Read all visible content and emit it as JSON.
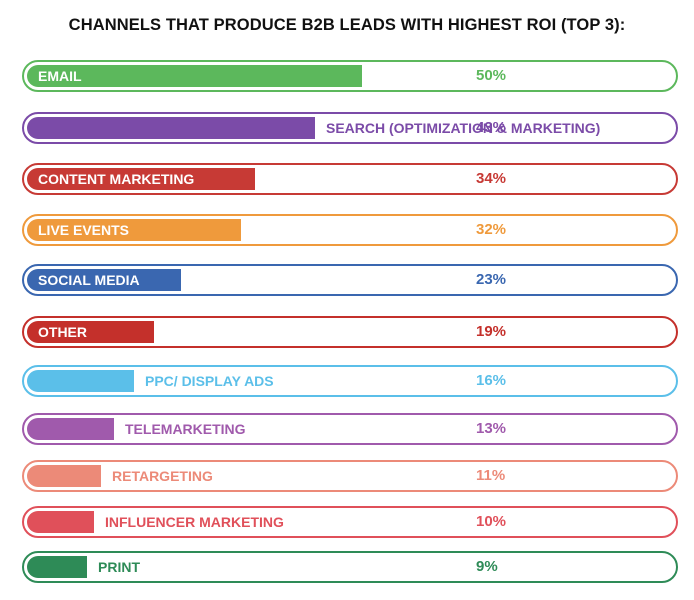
{
  "chart_data": {
    "type": "bar",
    "orientation": "horizontal",
    "title": "CHANNELS THAT PRODUCE B2B LEADS WITH HIGHEST ROI (TOP 3):",
    "xlabel": "",
    "ylabel": "",
    "xlim": [
      0,
      100
    ],
    "grid": false,
    "legend": "none",
    "categories": [
      "EMAIL",
      "SEARCH (OPTIMIZATION & MARKETING)",
      "CONTENT MARKETING",
      "LIVE EVENTS",
      "SOCIAL MEDIA",
      "OTHER",
      "PPC/ DISPLAY ADS",
      "TELEMARKETING",
      "RETARGETING",
      "INFLUENCER MARKETING",
      "PRINT"
    ],
    "values": [
      50,
      43,
      34,
      32,
      23,
      19,
      16,
      13,
      11,
      10,
      9
    ],
    "value_labels": [
      "50%",
      "43%",
      "34%",
      "32%",
      "23%",
      "19%",
      "16%",
      "13%",
      "11%",
      "10%",
      "9%"
    ],
    "colors": [
      "#5cb85c",
      "#7b4ba8",
      "#c73a35",
      "#ef9a3c",
      "#3a67b0",
      "#c4302b",
      "#5bbfe9",
      "#a05aac",
      "#ec8a78",
      "#e0505a",
      "#2e8b57"
    ]
  }
}
